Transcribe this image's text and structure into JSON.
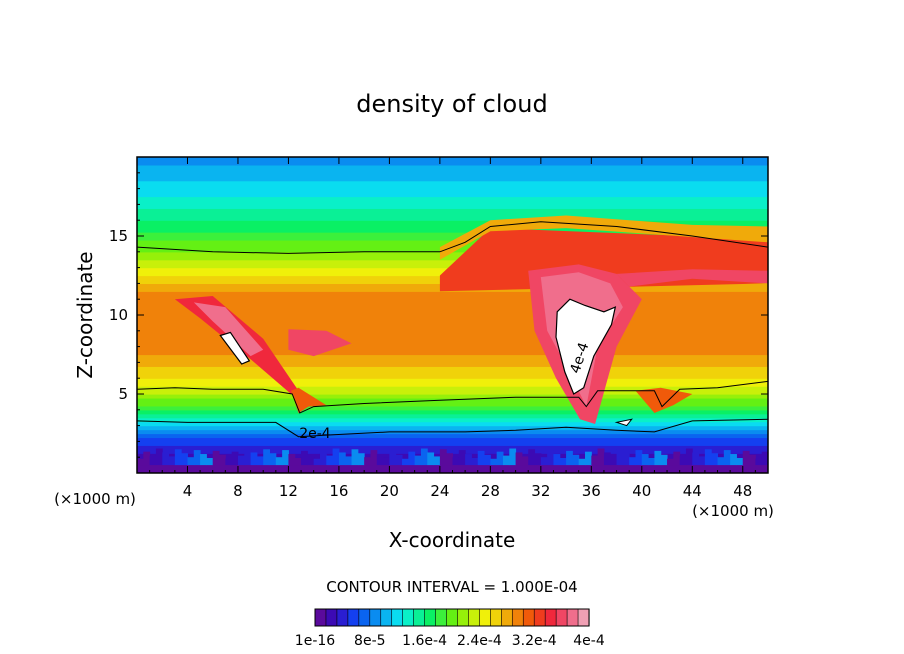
{
  "chart_data": {
    "type": "heatmap",
    "title": "density of cloud",
    "xlabel": "X-coordinate",
    "ylabel": "Z-coordinate",
    "x_unit_label": "(×1000 m)",
    "xlim": [
      0,
      50
    ],
    "ylim": [
      0,
      20
    ],
    "x_ticks": [
      4,
      8,
      12,
      16,
      20,
      24,
      28,
      32,
      36,
      40,
      44,
      48
    ],
    "y_ticks": [
      5,
      10,
      15
    ],
    "contour_interval_label": "CONTOUR INTERVAL = 1.000E-04",
    "contour_labels": [
      {
        "text": "2e-4",
        "x": 14.1,
        "z": 2.2
      },
      {
        "text": "4e-4",
        "x": 35.4,
        "z": 7.2
      }
    ],
    "colorbar_labels": [
      "1e-16",
      "8e-5",
      "1.6e-4",
      "2.4e-4",
      "3.2e-4",
      "4e-4"
    ],
    "colorbar_colors": [
      "#5a0a9c",
      "#3c0ab4",
      "#2a1ed2",
      "#1440f0",
      "#0a64f0",
      "#0a8cf0",
      "#0ab4f0",
      "#0adcf0",
      "#0af0c8",
      "#0af096",
      "#0af064",
      "#3cf03c",
      "#64f014",
      "#96f00a",
      "#c8f00a",
      "#f0f00a",
      "#f0d20a",
      "#f0aa0a",
      "#f0820a",
      "#f05a0a",
      "#f03c1e",
      "#f0283c",
      "#f04664",
      "#f06e8c",
      "#f0a0b4"
    ],
    "density_bands": [
      {
        "z": 0.3,
        "value": 0.0
      },
      {
        "z": 1.1,
        "value": 0.3
      },
      {
        "z": 2.0,
        "value": 0.55
      },
      {
        "z": 3.2,
        "value": 1.3
      },
      {
        "z": 4.0,
        "value": 1.7
      },
      {
        "z": 5.0,
        "value": 2.3
      },
      {
        "z": 7.5,
        "value": 2.9
      },
      {
        "z": 11.0,
        "value": 3.0
      },
      {
        "z": 12.5,
        "value": 2.6
      },
      {
        "z": 14.0,
        "value": 2.1
      },
      {
        "z": 16.0,
        "value": 1.6
      },
      {
        "z": 18.0,
        "value": 1.2
      },
      {
        "z": 20.0,
        "value": 0.9
      }
    ]
  }
}
